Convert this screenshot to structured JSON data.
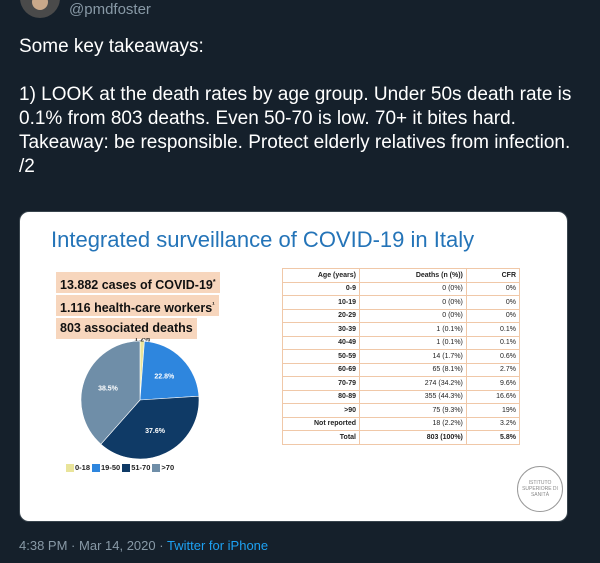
{
  "tweet": {
    "handle": "@pmdfoster",
    "paragraph1": "Some key takeaways:",
    "paragraph2": "1) LOOK at the death rates by age group. Under 50s death rate is 0.1% from 803 deaths. Even 50-70 is low. 70+ it bites hard. Takeaway: be responsible. Protect elderly relatives from infection. /2",
    "time": "4:38 PM",
    "separator": "·",
    "date": "Mar 14, 2020",
    "source": "Twitter for iPhone"
  },
  "card": {
    "title": "Integrated surveillance of COVID-19 in Italy",
    "stats": [
      {
        "text": "13.882 cases of COVID-19",
        "mark": "*"
      },
      {
        "text": "1.116 health-care workers",
        "mark": "¹"
      },
      {
        "text": "803 associated deaths",
        "mark": ""
      }
    ],
    "seal_text": "ISTITUTO SUPERIORE DI SANITÀ"
  },
  "colors": {
    "background": "#15202b",
    "handle_gray": "#8899a6",
    "link_blue": "#1da1f2",
    "title_blue": "#2474b8",
    "stat_highlight": "#f7d6bd",
    "table_border": "#f0c8a8"
  },
  "chart_data": [
    {
      "type": "pie",
      "categories": [
        "0-18",
        "19-50",
        "51-70",
        ">70"
      ],
      "values": [
        1.2,
        22.8,
        37.6,
        38.5
      ],
      "labels": [
        "1.2%",
        "22.8%",
        "37.6%",
        "38.5%"
      ],
      "colors": [
        "#e9e49a",
        "#2e86de",
        "#0f3a66",
        "#6f8ea8"
      ],
      "legend": "bottom"
    },
    {
      "type": "table",
      "columns": [
        "Age (years)",
        "Deaths (n (%))",
        "CFR"
      ],
      "rows": [
        [
          "0-9",
          "0 (0%)",
          "0%"
        ],
        [
          "10-19",
          "0 (0%)",
          "0%"
        ],
        [
          "20-29",
          "0 (0%)",
          "0%"
        ],
        [
          "30-39",
          "1 (0.1%)",
          "0.1%"
        ],
        [
          "40-49",
          "1 (0.1%)",
          "0.1%"
        ],
        [
          "50-59",
          "14 (1.7%)",
          "0.6%"
        ],
        [
          "60-69",
          "65 (8.1%)",
          "2.7%"
        ],
        [
          "70-79",
          "274 (34.2%)",
          "9.6%"
        ],
        [
          "80-89",
          "355 (44.3%)",
          "16.6%"
        ],
        [
          ">90",
          "75 (9.3%)",
          "19%"
        ],
        [
          "Not reported",
          "18 (2.2%)",
          "3.2%"
        ],
        [
          "Total",
          "803 (100%)",
          "5.8%"
        ]
      ]
    }
  ]
}
